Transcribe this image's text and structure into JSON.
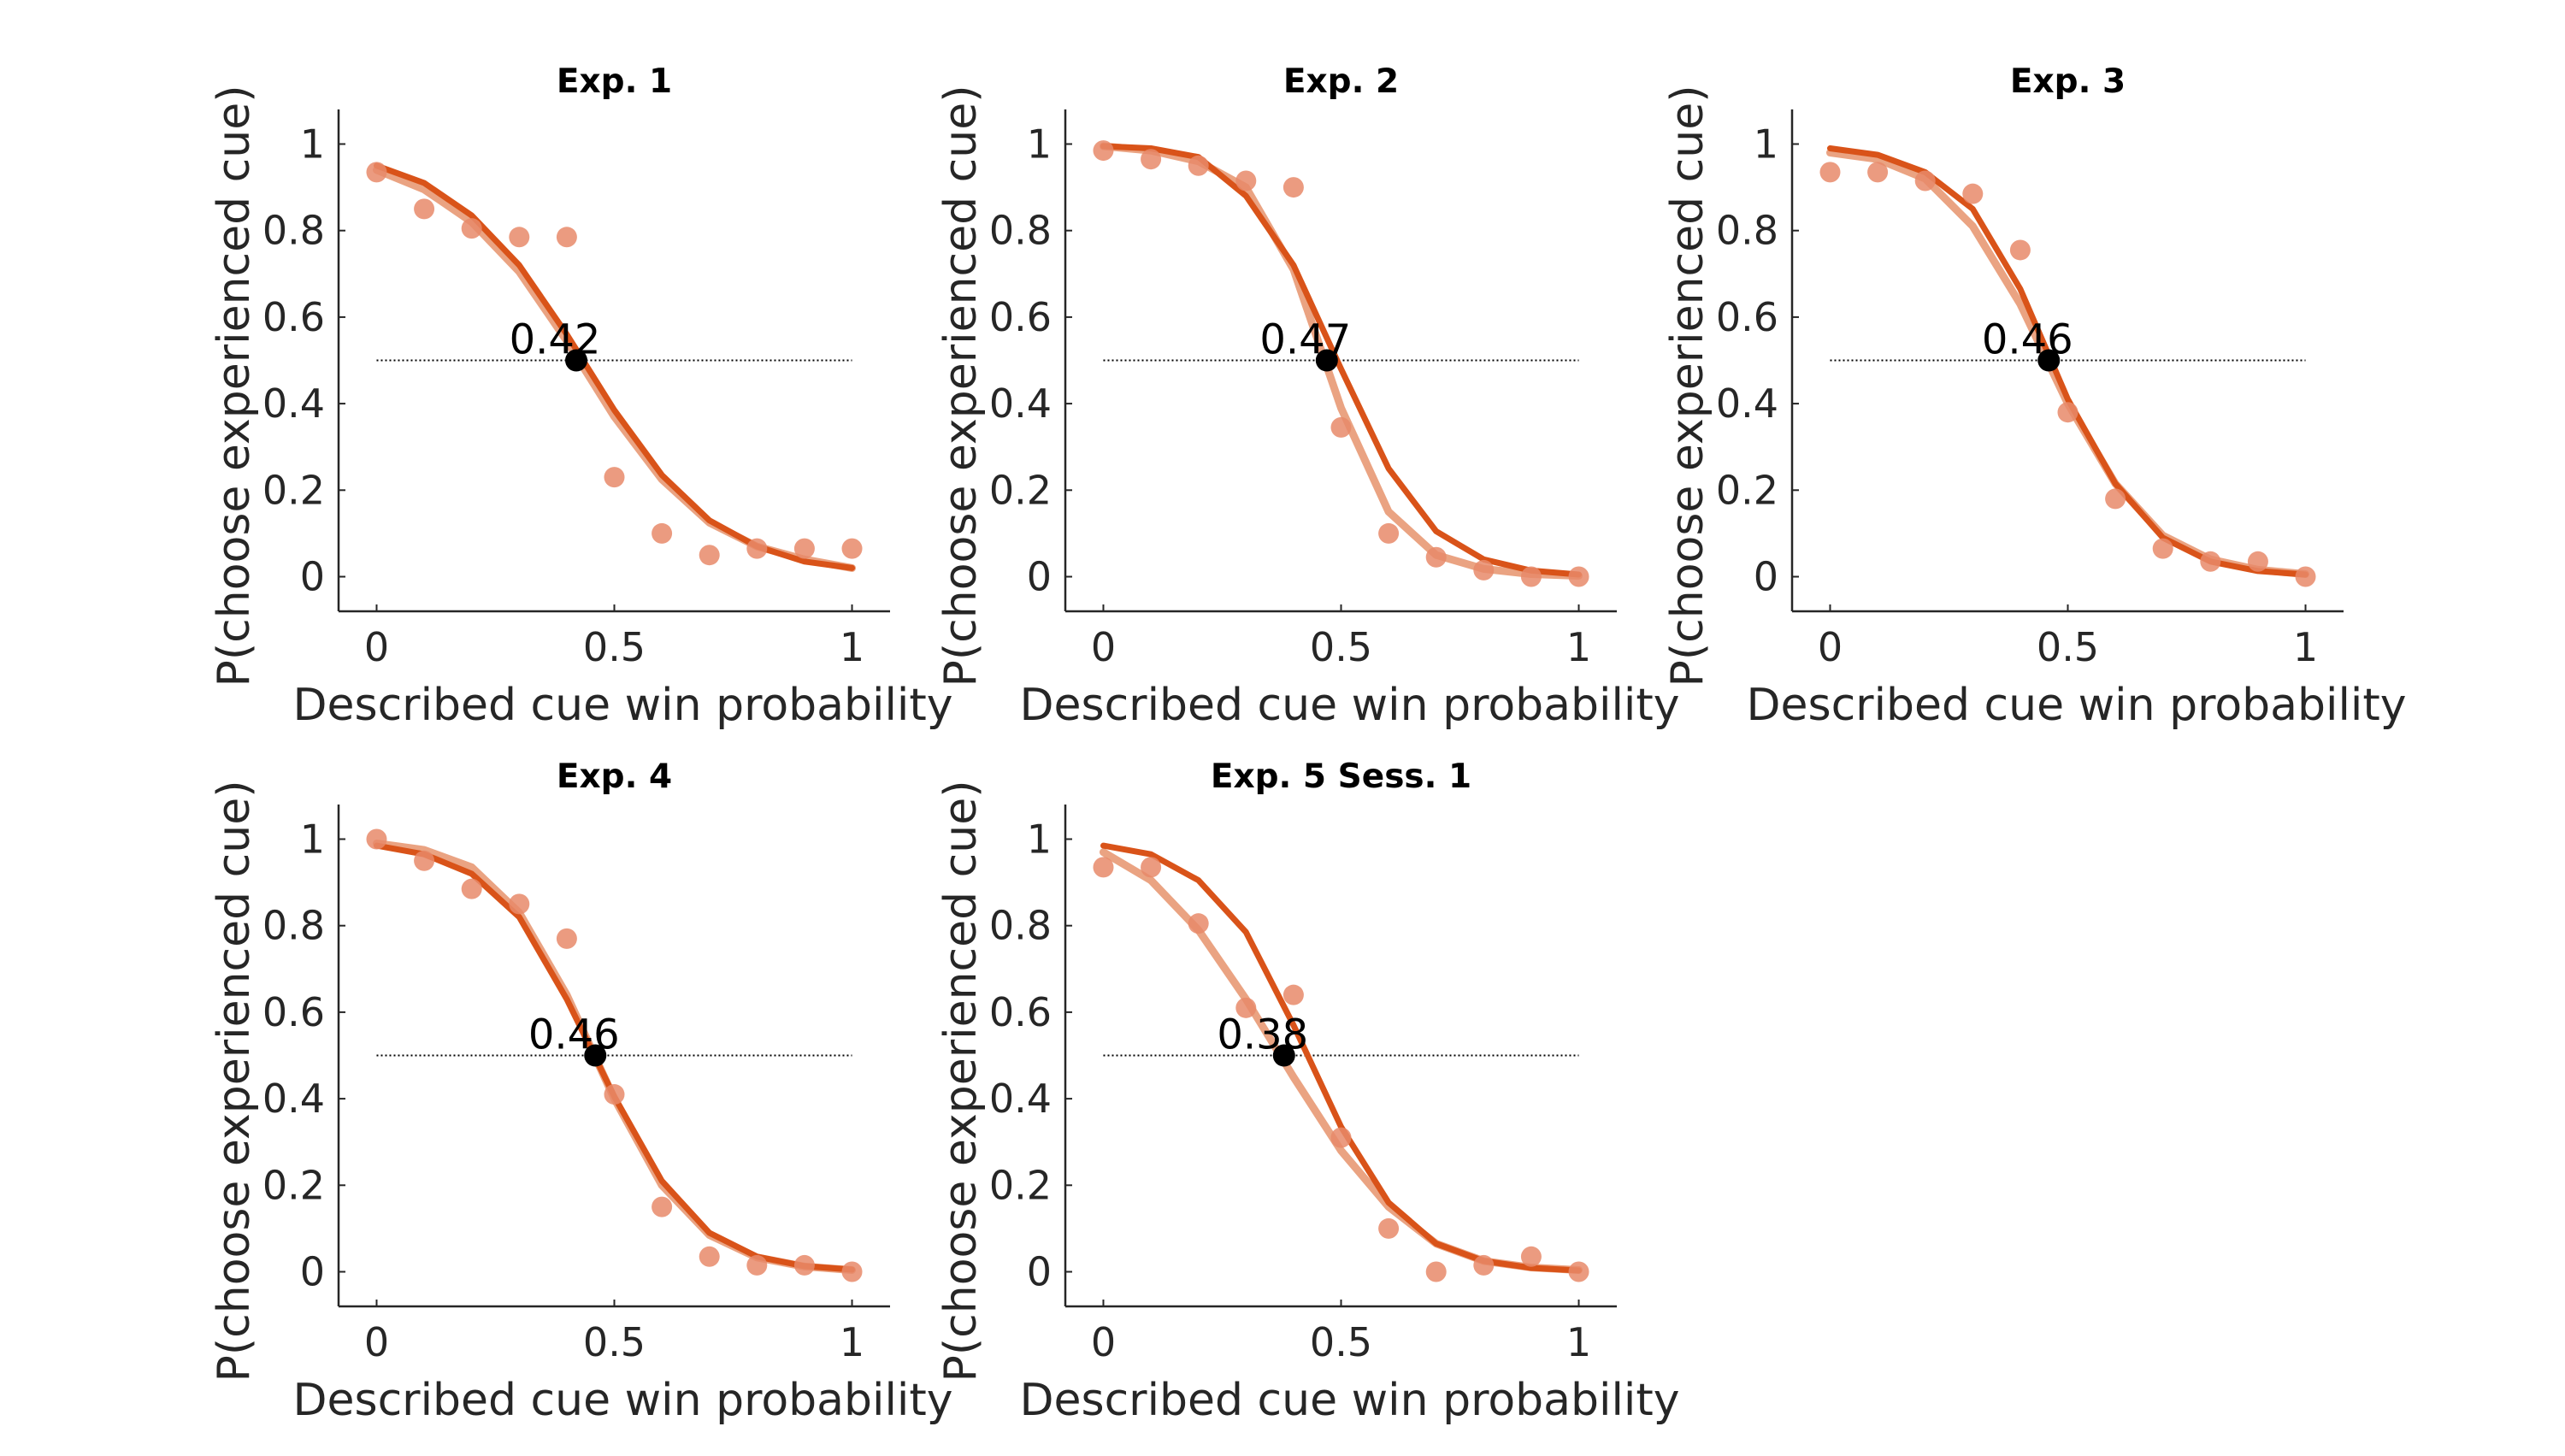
{
  "colors": {
    "fit_light": "#eaa382",
    "fit_dark": "#d95319",
    "points": "#e8896a",
    "threshold": "#000000",
    "axis": "#262626",
    "reference_line": "#000000"
  },
  "chart_data": [
    {
      "type": "scatter",
      "title": "Exp. 1",
      "xlabel": "Described cue win probability",
      "ylabel": "P(choose experienced cue)",
      "xlim": [
        -0.08,
        1.08
      ],
      "ylim": [
        -0.08,
        1.08
      ],
      "xticks": [
        "0",
        "0.5",
        "1"
      ],
      "yticks": [
        "0",
        "0.2",
        "0.4",
        "0.6",
        "0.8",
        "1"
      ],
      "reference_line": {
        "y": 0.5,
        "x": [
          0,
          1
        ],
        "style": "dotted"
      },
      "x": [
        0,
        0.1,
        0.2,
        0.3,
        0.4,
        0.5,
        0.6,
        0.7,
        0.8,
        0.9,
        1.0
      ],
      "points": [
        0.935,
        0.85,
        0.805,
        0.785,
        0.785,
        0.23,
        0.1,
        0.05,
        0.065,
        0.065,
        0.065
      ],
      "fit_light": [
        0.94,
        0.895,
        0.82,
        0.705,
        0.545,
        0.37,
        0.225,
        0.125,
        0.07,
        0.04,
        0.02
      ],
      "fit_dark": [
        0.95,
        0.91,
        0.835,
        0.72,
        0.56,
        0.385,
        0.235,
        0.13,
        0.07,
        0.035,
        0.02
      ],
      "threshold": {
        "x": 0.42,
        "y": 0.5,
        "label": "0.42"
      }
    },
    {
      "type": "scatter",
      "title": "Exp. 2",
      "xlabel": "Described cue win probability",
      "ylabel": "P(choose experienced cue)",
      "xlim": [
        -0.08,
        1.08
      ],
      "ylim": [
        -0.08,
        1.08
      ],
      "xticks": [
        "0",
        "0.5",
        "1"
      ],
      "yticks": [
        "0",
        "0.2",
        "0.4",
        "0.6",
        "0.8",
        "1"
      ],
      "reference_line": {
        "y": 0.5,
        "x": [
          0,
          1
        ],
        "style": "dotted"
      },
      "x": [
        0,
        0.1,
        0.2,
        0.3,
        0.4,
        0.5,
        0.6,
        0.7,
        0.8,
        0.9,
        1.0
      ],
      "points": [
        0.985,
        0.965,
        0.95,
        0.915,
        0.9,
        0.345,
        0.1,
        0.045,
        0.015,
        0.0,
        0.0
      ],
      "fit_light": [
        0.995,
        0.985,
        0.96,
        0.9,
        0.71,
        0.39,
        0.15,
        0.05,
        0.018,
        0.006,
        0.002
      ],
      "fit_dark": [
        0.995,
        0.99,
        0.97,
        0.88,
        0.72,
        0.48,
        0.25,
        0.105,
        0.04,
        0.014,
        0.005
      ],
      "threshold": {
        "x": 0.47,
        "y": 0.5,
        "label": "0.47"
      }
    },
    {
      "type": "scatter",
      "title": "Exp. 3",
      "xlabel": "Described cue win probability",
      "ylabel": "P(choose experienced cue)",
      "xlim": [
        -0.08,
        1.08
      ],
      "ylim": [
        -0.08,
        1.08
      ],
      "xticks": [
        "0",
        "0.5",
        "1"
      ],
      "yticks": [
        "0",
        "0.2",
        "0.4",
        "0.6",
        "0.8",
        "1"
      ],
      "reference_line": {
        "y": 0.5,
        "x": [
          0,
          1
        ],
        "style": "dotted"
      },
      "x": [
        0,
        0.1,
        0.2,
        0.3,
        0.4,
        0.5,
        0.6,
        0.7,
        0.8,
        0.9,
        1.0
      ],
      "points": [
        0.935,
        0.935,
        0.915,
        0.885,
        0.755,
        0.38,
        0.18,
        0.065,
        0.035,
        0.035,
        0.0
      ],
      "fit_light": [
        0.98,
        0.965,
        0.92,
        0.81,
        0.63,
        0.4,
        0.215,
        0.095,
        0.04,
        0.016,
        0.006
      ],
      "fit_dark": [
        0.99,
        0.975,
        0.935,
        0.85,
        0.665,
        0.41,
        0.215,
        0.09,
        0.035,
        0.013,
        0.005
      ],
      "threshold": {
        "x": 0.46,
        "y": 0.5,
        "label": "0.46"
      }
    },
    {
      "type": "scatter",
      "title": "Exp. 4",
      "xlabel": "Described cue win probability",
      "ylabel": "P(choose experienced cue)",
      "xlim": [
        -0.08,
        1.08
      ],
      "ylim": [
        -0.08,
        1.08
      ],
      "xticks": [
        "0",
        "0.5",
        "1"
      ],
      "yticks": [
        "0",
        "0.2",
        "0.4",
        "0.6",
        "0.8",
        "1"
      ],
      "reference_line": {
        "y": 0.5,
        "x": [
          0,
          1
        ],
        "style": "dotted"
      },
      "x": [
        0,
        0.1,
        0.2,
        0.3,
        0.4,
        0.5,
        0.6,
        0.7,
        0.8,
        0.9,
        1.0
      ],
      "points": [
        1.0,
        0.95,
        0.885,
        0.85,
        0.77,
        0.41,
        0.15,
        0.035,
        0.015,
        0.015,
        0.0
      ],
      "fit_light": [
        0.99,
        0.975,
        0.935,
        0.83,
        0.64,
        0.4,
        0.2,
        0.085,
        0.033,
        0.012,
        0.004
      ],
      "fit_dark": [
        0.985,
        0.965,
        0.92,
        0.82,
        0.63,
        0.405,
        0.21,
        0.09,
        0.035,
        0.013,
        0.005
      ],
      "threshold": {
        "x": 0.46,
        "y": 0.5,
        "label": "0.46"
      }
    },
    {
      "type": "scatter",
      "title": "Exp. 5 Sess. 1",
      "xlabel": "Described cue win probability",
      "ylabel": "P(choose experienced cue)",
      "xlim": [
        -0.08,
        1.08
      ],
      "ylim": [
        -0.08,
        1.08
      ],
      "xticks": [
        "0",
        "0.5",
        "1"
      ],
      "yticks": [
        "0",
        "0.2",
        "0.4",
        "0.6",
        "0.8",
        "1"
      ],
      "reference_line": {
        "y": 0.5,
        "x": [
          0,
          1
        ],
        "style": "dotted"
      },
      "x": [
        0,
        0.1,
        0.2,
        0.3,
        0.4,
        0.5,
        0.6,
        0.7,
        0.8,
        0.9,
        1.0
      ],
      "points": [
        0.935,
        0.935,
        0.805,
        0.61,
        0.64,
        0.31,
        0.1,
        0.0,
        0.015,
        0.035,
        0.0
      ],
      "fit_light": [
        0.97,
        0.905,
        0.79,
        0.63,
        0.45,
        0.28,
        0.15,
        0.065,
        0.025,
        0.01,
        0.004
      ],
      "fit_dark": [
        0.985,
        0.965,
        0.905,
        0.785,
        0.57,
        0.335,
        0.16,
        0.065,
        0.025,
        0.009,
        0.003
      ],
      "threshold": {
        "x": 0.38,
        "y": 0.5,
        "label": "0.38"
      }
    }
  ]
}
